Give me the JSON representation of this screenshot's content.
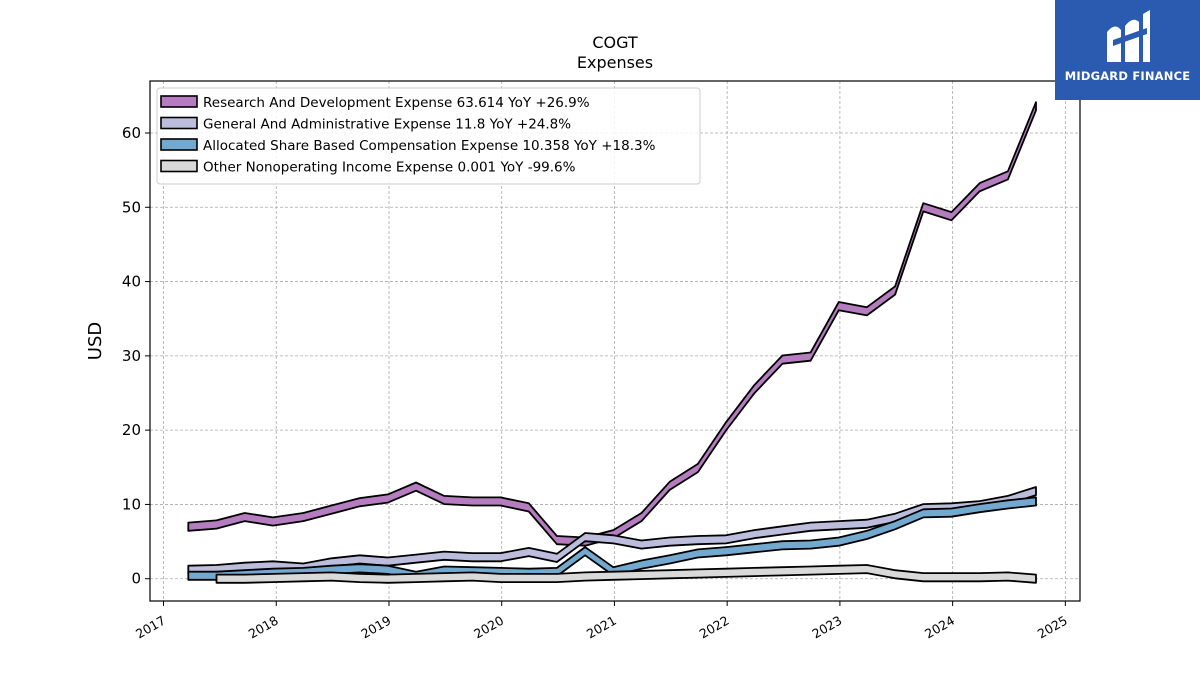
{
  "brand": {
    "name": "MIDGARD FINANCE",
    "bg_color": "#2a5bb0"
  },
  "chart_data": {
    "type": "area",
    "title": "COGT",
    "subtitle": "Expenses",
    "ylabel": "USD",
    "xlabel": "",
    "ylim": [
      -3,
      67
    ],
    "xlim": [
      2016.88,
      2025.13
    ],
    "yticks": [
      0,
      10,
      20,
      30,
      40,
      50,
      60
    ],
    "xticks": [
      2017,
      2018,
      2019,
      2020,
      2021,
      2022,
      2023,
      2024,
      2025
    ],
    "grid": true,
    "legend_position": "top-left",
    "series": [
      {
        "name": "Research And Development Expense",
        "legend": "Research And Development Expense  63.614 YoY +26.9%",
        "color": "#b57cbf",
        "x": [
          2017.22,
          2017.47,
          2017.72,
          2017.97,
          2018.24,
          2018.49,
          2018.74,
          2018.99,
          2019.24,
          2019.49,
          2019.74,
          2019.99,
          2020.24,
          2020.49,
          2020.74,
          2020.99,
          2021.24,
          2021.49,
          2021.74,
          2021.99,
          2022.24,
          2022.49,
          2022.74,
          2022.99,
          2023.24,
          2023.49,
          2023.74,
          2023.99,
          2024.24,
          2024.49,
          2024.74
        ],
        "values": [
          7.0,
          7.3,
          8.3,
          7.7,
          8.3,
          9.3,
          10.3,
          10.8,
          12.4,
          10.6,
          10.4,
          10.4,
          9.6,
          5.2,
          5.0,
          6.0,
          8.3,
          12.5,
          14.9,
          20.5,
          25.5,
          29.5,
          29.9,
          36.7,
          36.0,
          38.8,
          50.0,
          48.8,
          52.7,
          54.3,
          63.6
        ]
      },
      {
        "name": "General And Administrative Expense",
        "legend": "General And Administrative Expense  11.8 YoY +24.8%",
        "color": "#bcbddc",
        "x": [
          2017.22,
          2017.47,
          2017.72,
          2017.97,
          2018.24,
          2018.49,
          2018.74,
          2018.99,
          2019.24,
          2019.49,
          2019.74,
          2019.99,
          2020.24,
          2020.49,
          2020.74,
          2020.99,
          2021.24,
          2021.49,
          2021.74,
          2021.99,
          2022.24,
          2022.49,
          2022.74,
          2022.99,
          2023.24,
          2023.49,
          2023.74,
          2023.99,
          2024.24,
          2024.49,
          2024.74
        ],
        "values": [
          1.2,
          1.3,
          1.6,
          1.8,
          1.5,
          2.2,
          2.6,
          2.3,
          2.7,
          3.1,
          2.9,
          2.9,
          3.6,
          2.8,
          5.6,
          5.3,
          4.6,
          5.0,
          5.2,
          5.3,
          6.0,
          6.5,
          7.0,
          7.2,
          7.4,
          8.2,
          9.5,
          9.6,
          9.9,
          10.6,
          11.8
        ]
      },
      {
        "name": "Allocated Share Based Compensation Expense",
        "legend": "Allocated Share Based Compensation Expense  10.358 YoY +18.3%",
        "color": "#74a9cf",
        "x": [
          2017.22,
          2017.47,
          2017.72,
          2017.97,
          2018.24,
          2018.49,
          2018.74,
          2018.99,
          2019.24,
          2019.49,
          2019.74,
          2019.99,
          2020.24,
          2020.49,
          2020.74,
          2020.99,
          2021.24,
          2021.49,
          2021.74,
          2021.99,
          2022.24,
          2022.49,
          2022.74,
          2022.99,
          2023.24,
          2023.49,
          2023.74,
          2023.99,
          2024.24,
          2024.49,
          2024.74
        ],
        "values": [
          0.4,
          0.4,
          0.6,
          0.8,
          0.9,
          1.2,
          1.4,
          1.2,
          0.4,
          1.1,
          1.0,
          0.9,
          0.8,
          0.9,
          3.7,
          1.0,
          1.9,
          2.6,
          3.4,
          3.7,
          4.1,
          4.5,
          4.6,
          5.0,
          5.9,
          7.2,
          8.8,
          8.9,
          9.5,
          10.0,
          10.4
        ]
      },
      {
        "name": "Other Nonoperating Income Expense",
        "legend": "Other Nonoperating Income Expense  0.001 YoY -99.6%",
        "color": "#d9d9d9",
        "x": [
          2017.47,
          2017.72,
          2017.97,
          2018.24,
          2018.49,
          2018.74,
          2018.99,
          2019.24,
          2019.49,
          2019.74,
          2019.99,
          2020.24,
          2020.49,
          2020.74,
          2020.99,
          2021.24,
          2021.49,
          2021.74,
          2021.99,
          2022.24,
          2022.49,
          2022.74,
          2022.99,
          2023.24,
          2023.49,
          2023.74,
          2023.99,
          2024.24,
          2024.49,
          2024.74
        ],
        "values": [
          0.0,
          0.0,
          0.1,
          0.2,
          0.3,
          0.1,
          0.0,
          0.1,
          0.2,
          0.3,
          0.1,
          0.1,
          0.1,
          0.3,
          0.4,
          0.5,
          0.6,
          0.7,
          0.8,
          0.9,
          1.0,
          1.1,
          1.2,
          1.3,
          0.6,
          0.2,
          0.2,
          0.2,
          0.3,
          0.0
        ]
      }
    ]
  }
}
